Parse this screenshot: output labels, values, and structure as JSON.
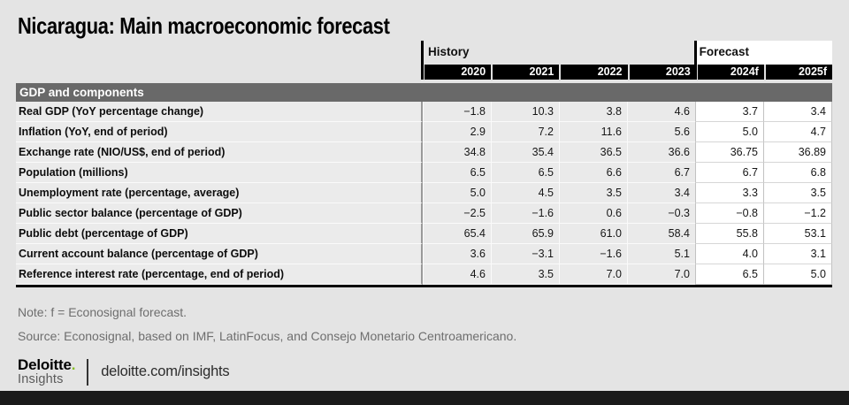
{
  "page": {
    "title": "Nicaragua: Main macroeconomic forecast",
    "note": "Note: f = Econosignal forecast.",
    "source": "Source: Econosignal, based on IMF, LatinFocus, and Consejo Monetario Centroamericano."
  },
  "footer": {
    "brand_top": "Deloitte",
    "brand_dot": ".",
    "brand_bottom": "Insights",
    "url": "deloitte.com/insights"
  },
  "colors": {
    "page_bg": "#e4e4e4",
    "section_band": "#696969",
    "year_bar": "#000000",
    "history_cell": "#eaeaea",
    "forecast_cell": "#ffffff",
    "accent_green": "#86bc25",
    "bottom_bar": "#1a1a1a"
  },
  "table": {
    "group_headers": [
      {
        "label": "History",
        "span": 4
      },
      {
        "label": "Forecast",
        "span": 2
      }
    ],
    "columns": [
      "2020",
      "2021",
      "2022",
      "2023",
      "2024f",
      "2025f"
    ],
    "section_header": "GDP and components",
    "rows": [
      {
        "label": "Real GDP (YoY percentage change)",
        "values": [
          "−1.8",
          "10.3",
          "3.8",
          "4.6",
          "3.7",
          "3.4"
        ]
      },
      {
        "label": "Inflation (YoY, end of period)",
        "values": [
          "2.9",
          "7.2",
          "11.6",
          "5.6",
          "5.0",
          "4.7"
        ]
      },
      {
        "label": "Exchange rate (NIO/US$, end of period)",
        "values": [
          "34.8",
          "35.4",
          "36.5",
          "36.6",
          "36.75",
          "36.89"
        ]
      },
      {
        "label": "Population (millions)",
        "values": [
          "6.5",
          "6.5",
          "6.6",
          "6.7",
          "6.7",
          "6.8"
        ]
      },
      {
        "label": "Unemployment rate (percentage, average)",
        "values": [
          "5.0",
          "4.5",
          "3.5",
          "3.4",
          "3.3",
          "3.5"
        ]
      },
      {
        "label": "Public sector balance (percentage of GDP)",
        "values": [
          "−2.5",
          "−1.6",
          "0.6",
          "−0.3",
          "−0.8",
          "−1.2"
        ]
      },
      {
        "label": "Public debt (percentage of GDP)",
        "values": [
          "65.4",
          "65.9",
          "61.0",
          "58.4",
          "55.8",
          "53.1"
        ]
      },
      {
        "label": "Current account balance (percentage of GDP)",
        "values": [
          "3.6",
          "−3.1",
          "−1.6",
          "5.1",
          "4.0",
          "3.1"
        ]
      },
      {
        "label": "Reference interest rate (percentage, end of period)",
        "values": [
          "4.6",
          "3.5",
          "7.0",
          "7.0",
          "6.5",
          "5.0"
        ]
      }
    ]
  },
  "chart_data": {
    "type": "table",
    "title": "Nicaragua: Main macroeconomic forecast",
    "section": "GDP and components",
    "column_groups": [
      {
        "label": "History",
        "columns": [
          "2020",
          "2021",
          "2022",
          "2023"
        ]
      },
      {
        "label": "Forecast",
        "columns": [
          "2024f",
          "2025f"
        ]
      }
    ],
    "categories": [
      "2020",
      "2021",
      "2022",
      "2023",
      "2024f",
      "2025f"
    ],
    "series": [
      {
        "name": "Real GDP (YoY percentage change)",
        "values": [
          -1.8,
          10.3,
          3.8,
          4.6,
          3.7,
          3.4
        ]
      },
      {
        "name": "Inflation (YoY, end of period)",
        "values": [
          2.9,
          7.2,
          11.6,
          5.6,
          5.0,
          4.7
        ]
      },
      {
        "name": "Exchange rate (NIO/US$, end of period)",
        "values": [
          34.8,
          35.4,
          36.5,
          36.6,
          36.75,
          36.89
        ]
      },
      {
        "name": "Population (millions)",
        "values": [
          6.5,
          6.5,
          6.6,
          6.7,
          6.7,
          6.8
        ]
      },
      {
        "name": "Unemployment rate (percentage, average)",
        "values": [
          5.0,
          4.5,
          3.5,
          3.4,
          3.3,
          3.5
        ]
      },
      {
        "name": "Public sector balance (percentage of GDP)",
        "values": [
          -2.5,
          -1.6,
          0.6,
          -0.3,
          -0.8,
          -1.2
        ]
      },
      {
        "name": "Public debt (percentage of GDP)",
        "values": [
          65.4,
          65.9,
          61.0,
          58.4,
          55.8,
          53.1
        ]
      },
      {
        "name": "Current account balance (percentage of GDP)",
        "values": [
          3.6,
          -3.1,
          -1.6,
          5.1,
          4.0,
          3.1
        ]
      },
      {
        "name": "Reference interest rate (percentage, end of period)",
        "values": [
          4.6,
          3.5,
          7.0,
          7.0,
          6.5,
          5.0
        ]
      }
    ],
    "note": "Note: f = Econosignal forecast.",
    "source": "Source: Econosignal, based on IMF, LatinFocus, and Consejo Monetario Centroamericano."
  }
}
